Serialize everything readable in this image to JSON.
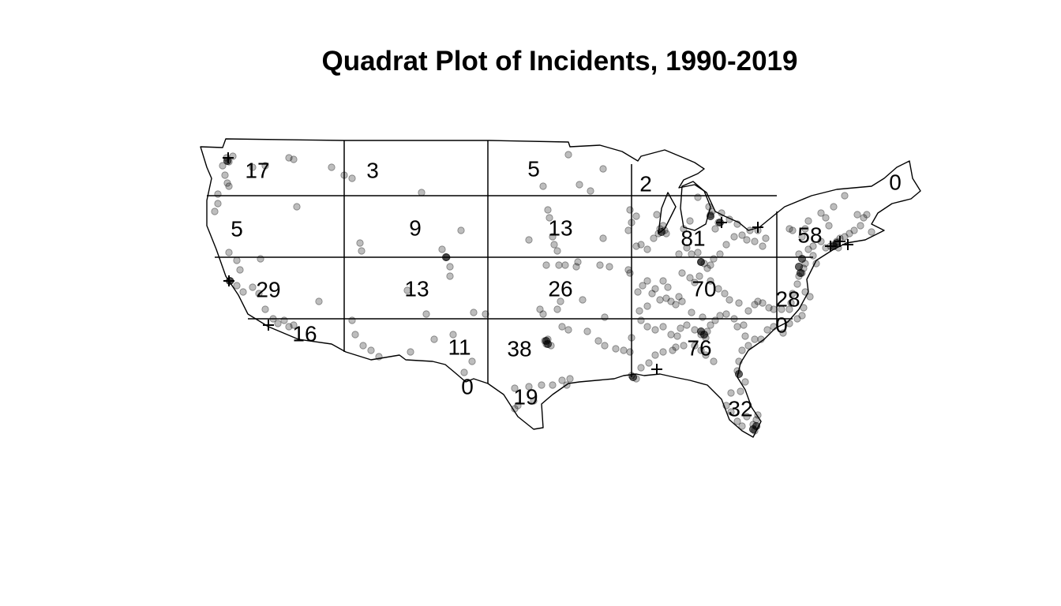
{
  "title": "Quadrat Plot of Incidents, 1990-2019",
  "chart_data": {
    "type": "quadrat-map",
    "title": "Quadrat Plot of Incidents, 1990-2019",
    "grid": {
      "columns": 5,
      "rows": 5
    },
    "quadrat_counts": [
      {
        "col": 0,
        "row": 0,
        "count": "17"
      },
      {
        "col": 1,
        "row": 0,
        "count": "3"
      },
      {
        "col": 2,
        "row": 0,
        "count": "5"
      },
      {
        "col": 3,
        "row": 0,
        "count": "2"
      },
      {
        "col": 4,
        "row": 0,
        "count": "0"
      },
      {
        "col": 0,
        "row": 1,
        "count": "5"
      },
      {
        "col": 1,
        "row": 1,
        "count": "9"
      },
      {
        "col": 2,
        "row": 1,
        "count": "13"
      },
      {
        "col": 3,
        "row": 1,
        "count": "81"
      },
      {
        "col": 4,
        "row": 1,
        "count": "58"
      },
      {
        "col": 0,
        "row": 2,
        "count": "29"
      },
      {
        "col": 1,
        "row": 2,
        "count": "13"
      },
      {
        "col": 2,
        "row": 2,
        "count": "26"
      },
      {
        "col": 3,
        "row": 2,
        "count": "70"
      },
      {
        "col": 4,
        "row": 2,
        "count": "28"
      },
      {
        "col": 0,
        "row": 3,
        "count": "16"
      },
      {
        "col": 1,
        "row": 3,
        "count": "11"
      },
      {
        "col": 2,
        "row": 3,
        "count": "38"
      },
      {
        "col": 3,
        "row": 3,
        "count": "76"
      },
      {
        "col": 4,
        "row": 3,
        "count": "0"
      },
      {
        "col": 1,
        "row": 4,
        "count": "0"
      },
      {
        "col": 2,
        "row": 4,
        "count": "19"
      },
      {
        "col": 3,
        "row": 4,
        "count": "32"
      }
    ],
    "point_style": "semi-transparent grey circles",
    "duplicate_marker": "+"
  }
}
